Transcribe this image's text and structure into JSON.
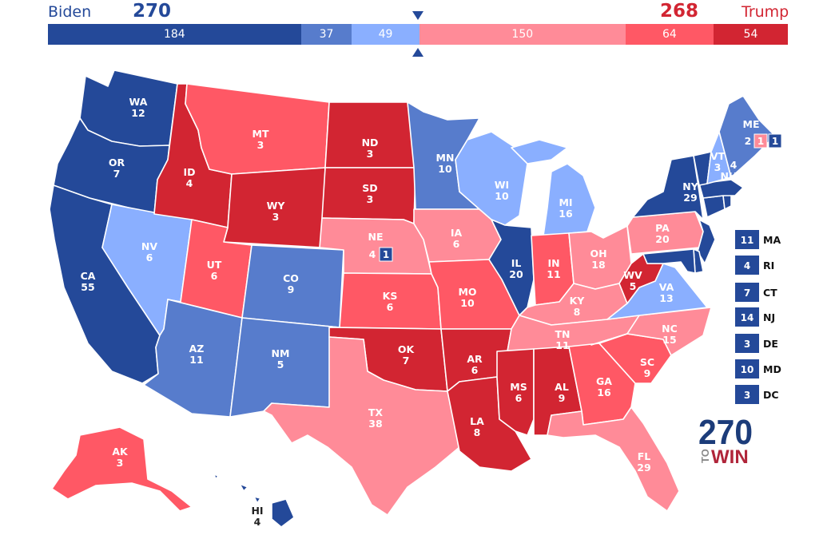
{
  "header": {
    "dem_name": "Biden",
    "dem_total": "270",
    "rep_name": "Trump",
    "rep_total": "268",
    "segments": [
      {
        "value": "184",
        "color": "#244999"
      },
      {
        "value": "37",
        "color": "#577ccc"
      },
      {
        "value": "49",
        "color": "#8aafff"
      },
      {
        "value": "150",
        "color": "#ff8b98"
      },
      {
        "value": "64",
        "color": "#ff5865"
      },
      {
        "value": "54",
        "color": "#d22532"
      }
    ]
  },
  "colors": {
    "safe_dem": "#244999",
    "likely_dem": "#577ccc",
    "lean_dem": "#8aafff",
    "lean_rep": "#ff8b98",
    "likely_rep": "#ff5865",
    "safe_rep": "#d22532"
  },
  "states": [
    {
      "abbr": "WA",
      "ev": "12",
      "rating": "safe_dem"
    },
    {
      "abbr": "OR",
      "ev": "7",
      "rating": "safe_dem"
    },
    {
      "abbr": "CA",
      "ev": "55",
      "rating": "safe_dem"
    },
    {
      "abbr": "NV",
      "ev": "6",
      "rating": "lean_dem"
    },
    {
      "abbr": "ID",
      "ev": "4",
      "rating": "safe_rep"
    },
    {
      "abbr": "MT",
      "ev": "3",
      "rating": "likely_rep"
    },
    {
      "abbr": "WY",
      "ev": "3",
      "rating": "safe_rep"
    },
    {
      "abbr": "UT",
      "ev": "6",
      "rating": "likely_rep"
    },
    {
      "abbr": "AZ",
      "ev": "11",
      "rating": "likely_dem"
    },
    {
      "abbr": "CO",
      "ev": "9",
      "rating": "likely_dem"
    },
    {
      "abbr": "NM",
      "ev": "5",
      "rating": "likely_dem"
    },
    {
      "abbr": "ND",
      "ev": "3",
      "rating": "safe_rep"
    },
    {
      "abbr": "SD",
      "ev": "3",
      "rating": "safe_rep"
    },
    {
      "abbr": "NE",
      "ev": "4",
      "rating": "lean_rep"
    },
    {
      "abbr": "KS",
      "ev": "6",
      "rating": "likely_rep"
    },
    {
      "abbr": "OK",
      "ev": "7",
      "rating": "safe_rep"
    },
    {
      "abbr": "TX",
      "ev": "38",
      "rating": "lean_rep"
    },
    {
      "abbr": "MN",
      "ev": "10",
      "rating": "likely_dem"
    },
    {
      "abbr": "IA",
      "ev": "6",
      "rating": "lean_rep"
    },
    {
      "abbr": "MO",
      "ev": "10",
      "rating": "likely_rep"
    },
    {
      "abbr": "AR",
      "ev": "6",
      "rating": "safe_rep"
    },
    {
      "abbr": "LA",
      "ev": "8",
      "rating": "safe_rep"
    },
    {
      "abbr": "WI",
      "ev": "10",
      "rating": "lean_dem"
    },
    {
      "abbr": "IL",
      "ev": "20",
      "rating": "safe_dem"
    },
    {
      "abbr": "MI",
      "ev": "16",
      "rating": "lean_dem"
    },
    {
      "abbr": "IN",
      "ev": "11",
      "rating": "likely_rep"
    },
    {
      "abbr": "OH",
      "ev": "18",
      "rating": "lean_rep"
    },
    {
      "abbr": "KY",
      "ev": "8",
      "rating": "lean_rep"
    },
    {
      "abbr": "TN",
      "ev": "11",
      "rating": "lean_rep"
    },
    {
      "abbr": "MS",
      "ev": "6",
      "rating": "safe_rep"
    },
    {
      "abbr": "AL",
      "ev": "9",
      "rating": "safe_rep"
    },
    {
      "abbr": "GA",
      "ev": "16",
      "rating": "likely_rep"
    },
    {
      "abbr": "FL",
      "ev": "29",
      "rating": "lean_rep"
    },
    {
      "abbr": "SC",
      "ev": "9",
      "rating": "likely_rep"
    },
    {
      "abbr": "NC",
      "ev": "15",
      "rating": "lean_rep"
    },
    {
      "abbr": "VA",
      "ev": "13",
      "rating": "lean_dem"
    },
    {
      "abbr": "WV",
      "ev": "5",
      "rating": "safe_rep"
    },
    {
      "abbr": "PA",
      "ev": "20",
      "rating": "lean_rep"
    },
    {
      "abbr": "NY",
      "ev": "29",
      "rating": "safe_dem"
    },
    {
      "abbr": "VT",
      "ev": "3",
      "rating": "safe_dem"
    },
    {
      "abbr": "NH",
      "ev": "4",
      "rating": "lean_dem"
    },
    {
      "abbr": "ME",
      "ev": "2",
      "rating": "likely_dem"
    },
    {
      "abbr": "AK",
      "ev": "3",
      "rating": "likely_rep"
    },
    {
      "abbr": "HI",
      "ev": "4",
      "rating": "safe_dem"
    }
  ],
  "districts": [
    {
      "label": "ME",
      "ev": "1",
      "rating": "lean_rep"
    },
    {
      "label": "ME",
      "ev": "1",
      "rating": "safe_dem"
    },
    {
      "label": "NE",
      "ev": "1",
      "rating": "safe_dem"
    }
  ],
  "small_states": [
    {
      "abbr": "MA",
      "ev": "11",
      "rating": "safe_dem"
    },
    {
      "abbr": "RI",
      "ev": "4",
      "rating": "safe_dem"
    },
    {
      "abbr": "CT",
      "ev": "7",
      "rating": "safe_dem"
    },
    {
      "abbr": "NJ",
      "ev": "14",
      "rating": "safe_dem"
    },
    {
      "abbr": "DE",
      "ev": "3",
      "rating": "safe_dem"
    },
    {
      "abbr": "MD",
      "ev": "10",
      "rating": "safe_dem"
    },
    {
      "abbr": "DC",
      "ev": "3",
      "rating": "safe_dem"
    }
  ],
  "logo": {
    "number": "270",
    "to": "TO",
    "win": "WIN"
  }
}
